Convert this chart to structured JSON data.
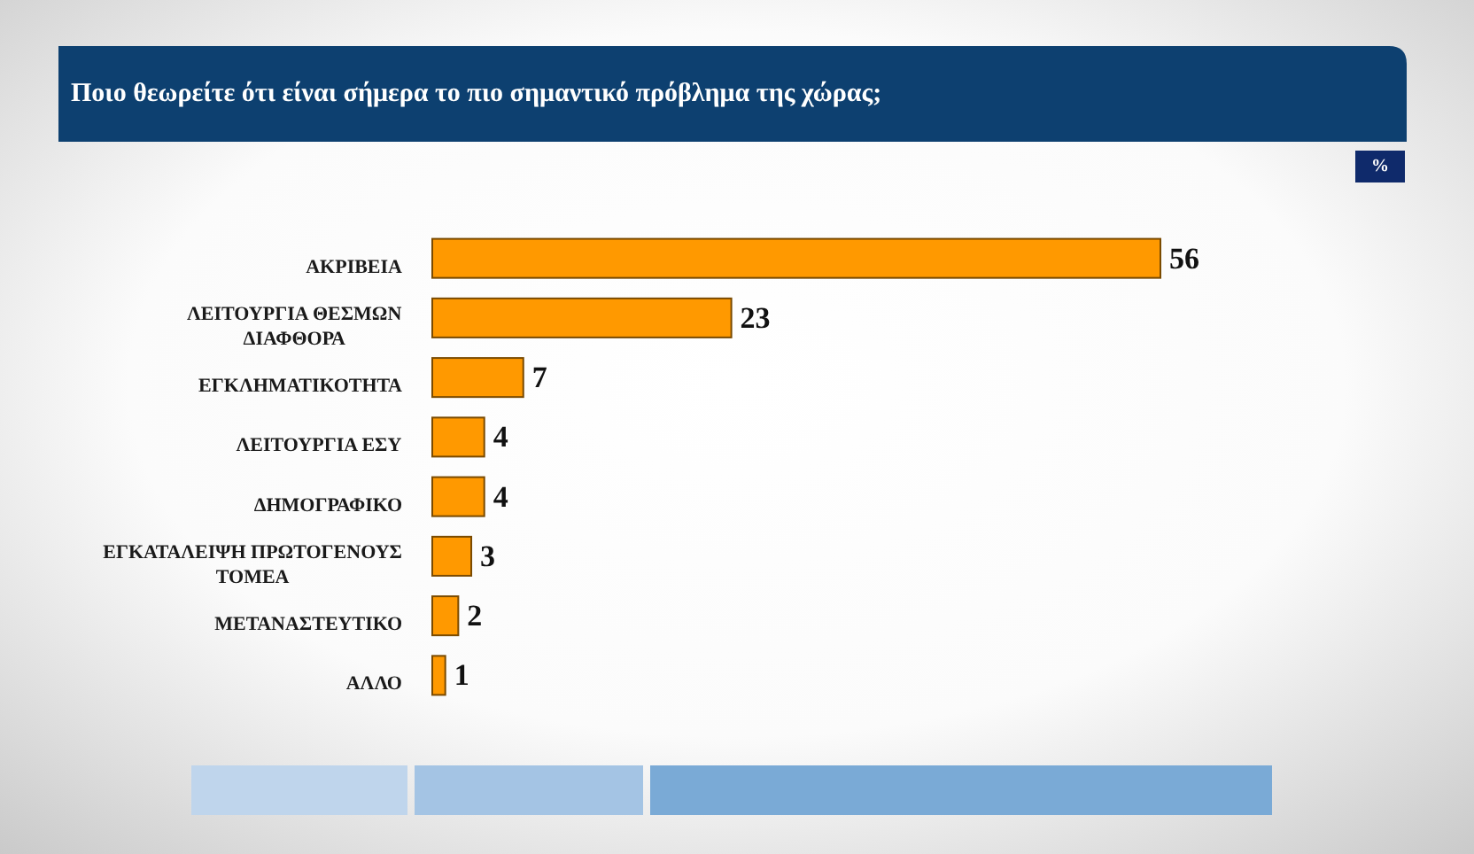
{
  "chart_data": {
    "type": "bar",
    "orientation": "horizontal",
    "title": "Ποιο θεωρείτε ότι είναι σήμερα το πιο σημαντικό πρόβλημα της χώρας;",
    "annotations": [
      "%"
    ],
    "categories": [
      "ΑΚΡΙΒΕΙΑ",
      "ΛΕΙΤΟΥΡΓΙΑ ΘΕΣΜΩΝ ΔΙΑΦΘΟΡΑ",
      "ΕΓΚΛΗΜΑΤΙΚΟΤΗΤΑ",
      "ΛΕΙΤΟΥΡΓΙΑ ΕΣΥ",
      "ΔΗΜΟΓΡΑΦΙΚΟ",
      "ΕΓΚΑΤΑΛΕΙΨΗ ΠΡΩΤΟΓΕΝΟΥΣ ΤΟΜΕΑ",
      "ΜΕΤΑΝΑΣΤΕΥΤΙΚΟ",
      "ΑΛΛΟ"
    ],
    "values": [
      56,
      23,
      7,
      4,
      4,
      3,
      2,
      1
    ],
    "color": "#ff9900",
    "data_labels": true
  }
}
